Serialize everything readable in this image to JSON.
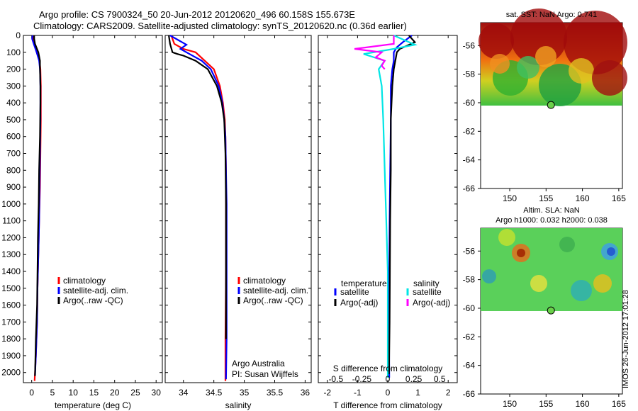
{
  "header": {
    "line1": "Argo profile: CS 7900324_50 20-Jun-2012 20120620_496 60.158S 155.673E",
    "line2": "Climatology: CARS2009. Satellite-adjusted climatology: synTS_20120620.nc (0.36d earlier)"
  },
  "colors": {
    "climatology": "#ff0000",
    "satellite": "#0000ff",
    "argo": "#000000",
    "sat_salinity": "#00e5e5",
    "argo_salinity": "#ff00ff"
  },
  "chart_data": [
    {
      "id": "temperature",
      "type": "line",
      "xlabel": "temperature (deg C)",
      "ylabel": "",
      "xlim": [
        -2,
        31.5
      ],
      "ylim": [
        2060,
        0
      ],
      "xticks": [
        0,
        5,
        10,
        15,
        20,
        25,
        30
      ],
      "yticks": [
        0,
        100,
        200,
        300,
        400,
        500,
        600,
        700,
        800,
        900,
        1000,
        1100,
        1200,
        1300,
        1400,
        1500,
        1600,
        1700,
        1800,
        1900,
        2000
      ],
      "legend": {
        "position": "lower-center",
        "entries": [
          "climatology",
          "satellite-adj. clim.",
          "Argo(..raw -QC)"
        ]
      },
      "series": [
        {
          "name": "climatology",
          "color": "#ff0000",
          "x": [
            0.3,
            0.4,
            0.6,
            1.2,
            1.9,
            2.1,
            2.2,
            2.2,
            2.2,
            2.1,
            2.0,
            1.8,
            1.6,
            1.4,
            1.3,
            1.0,
            0.7
          ],
          "y": [
            0,
            20,
            50,
            100,
            150,
            200,
            300,
            400,
            500,
            700,
            900,
            1100,
            1300,
            1500,
            1700,
            1900,
            2050
          ]
        },
        {
          "name": "satellite-adj. clim.",
          "color": "#0000ff",
          "x": [
            0.2,
            0.1,
            0.5,
            1.2,
            1.8,
            2.0,
            2.1,
            2.1,
            2.1,
            2.0,
            1.9,
            1.8,
            1.6,
            1.4,
            1.3,
            1.0,
            0.8
          ],
          "y": [
            0,
            20,
            50,
            100,
            150,
            200,
            300,
            400,
            500,
            700,
            900,
            1100,
            1300,
            1500,
            1700,
            1900,
            2020
          ]
        },
        {
          "name": "Argo(..raw -QC)",
          "color": "#000000",
          "x": [
            0.6,
            0.6,
            0.8,
            1.6,
            2.0,
            2.0,
            2.1,
            2.1,
            2.0,
            1.8,
            1.7,
            1.5,
            1.4,
            1.3,
            1.0,
            0.8
          ],
          "y": [
            0,
            20,
            50,
            100,
            150,
            200,
            300,
            400,
            600,
            800,
            1000,
            1200,
            1400,
            1600,
            1800,
            2020
          ]
        }
      ]
    },
    {
      "id": "salinity",
      "type": "line",
      "xlabel": "salinity",
      "ylabel": "",
      "xlim": [
        33.7,
        36.1
      ],
      "ylim": [
        2060,
        0
      ],
      "xticks": [
        34,
        34.5,
        35,
        35.5,
        36
      ],
      "xticklabels": [
        "34",
        "34.5",
        "35",
        "35.5",
        "36"
      ],
      "legend": {
        "position": "lower-center",
        "entries": [
          "climatology",
          "satellite-adj. clim.",
          "Argo(..raw -QC)"
        ]
      },
      "annotation": [
        "Argo Australia",
        "PI: Susan Wijffels"
      ],
      "series": [
        {
          "name": "climatology",
          "color": "#ff0000",
          "x": [
            33.8,
            33.85,
            34.0,
            34.2,
            34.35,
            34.5,
            34.6,
            34.65,
            34.68,
            34.69,
            34.7,
            34.7,
            34.7,
            34.69,
            34.69
          ],
          "y": [
            0,
            50,
            80,
            100,
            150,
            200,
            300,
            400,
            500,
            600,
            800,
            1000,
            1400,
            1800,
            2050
          ]
        },
        {
          "name": "satellite-adj. clim.",
          "color": "#0000ff",
          "x": [
            33.78,
            34.05,
            33.95,
            34.1,
            34.3,
            34.45,
            34.58,
            34.64,
            34.67,
            34.69,
            34.7,
            34.71,
            34.71,
            34.71,
            34.7
          ],
          "y": [
            0,
            55,
            80,
            110,
            150,
            200,
            300,
            400,
            500,
            600,
            800,
            1000,
            1400,
            1800,
            2040
          ]
        },
        {
          "name": "Argo(..raw -QC)",
          "color": "#000000",
          "x": [
            33.76,
            33.78,
            33.82,
            33.9,
            34.0,
            34.2,
            34.4,
            34.55,
            34.63,
            34.67,
            34.69,
            34.7,
            34.7,
            34.7
          ],
          "y": [
            0,
            50,
            100,
            110,
            120,
            150,
            200,
            300,
            400,
            500,
            700,
            1000,
            1400,
            1800
          ]
        }
      ]
    },
    {
      "id": "difference",
      "type": "line",
      "xlabel": "T difference from climatology",
      "x2label": "S difference from climatology",
      "ylabel": "",
      "xlim": [
        -2.3,
        2.3
      ],
      "ylim": [
        2060,
        0
      ],
      "xticks": [
        -2,
        -1,
        0,
        1,
        2
      ],
      "x2ticks": [
        -0.5,
        -0.25,
        0,
        0.25,
        0.5
      ],
      "x2ticklabels": [
        "-0.5",
        "-0.25",
        "0",
        "0.25",
        "0.5"
      ],
      "legend": {
        "position": "lower-center",
        "groups": [
          "temperature",
          "salinity"
        ],
        "entries": [
          "satellite",
          "Argo(-adj)",
          "satellite",
          "Argo(-adj)"
        ]
      },
      "series": [
        {
          "name": "satellite",
          "group": "temperature",
          "color": "#0000ff",
          "x": [
            0.8,
            0.5,
            0.3,
            0.2,
            0.2,
            0.15,
            0.1,
            0.1,
            0.08,
            0.06,
            0.05,
            0.04,
            0.05
          ],
          "y": [
            0,
            40,
            70,
            100,
            150,
            200,
            300,
            500,
            800,
            1100,
            1400,
            1700,
            2030
          ]
        },
        {
          "name": "Argo(-adj)",
          "group": "temperature",
          "color": "#000000",
          "x": [
            0.7,
            0.8,
            0.9,
            0.4,
            0.3,
            0.25,
            0.2,
            0.15,
            0.1,
            0.1,
            0.08,
            0.07,
            0.06,
            0.04
          ],
          "y": [
            0,
            20,
            40,
            80,
            100,
            150,
            200,
            300,
            500,
            800,
            1100,
            1400,
            1700,
            2010
          ]
        },
        {
          "name": "satellite",
          "group": "salinity",
          "color": "#00e5e5",
          "x": [
            0.2,
            0.9,
            0.2,
            -0.8,
            -0.1,
            -0.3,
            -0.2,
            -0.15,
            -0.1,
            -0.05,
            0.0,
            0.0,
            0.0
          ],
          "y": [
            0,
            55,
            80,
            110,
            150,
            200,
            300,
            500,
            800,
            1100,
            1400,
            1700,
            2030
          ]
        },
        {
          "name": "Argo(-adj)",
          "group": "salinity",
          "color": "#ff00ff",
          "x": [
            0.2,
            0.2,
            -1.1,
            -0.2,
            -0.4,
            -0.1,
            -0.2,
            -0.1
          ],
          "y": [
            0,
            50,
            80,
            100,
            130,
            150,
            180,
            200
          ]
        }
      ]
    },
    {
      "id": "sst-map",
      "type": "heatmap",
      "title": "sat. SST: NaN Argo: 0.741",
      "xlim": [
        146,
        165.5
      ],
      "ylim": [
        -66,
        -54.4
      ],
      "xticks": [
        150,
        155,
        160,
        165
      ],
      "yticks": [
        -56,
        -58,
        -60,
        -62,
        -64,
        -66
      ],
      "data_extent_lat": [
        -60.2,
        -54.4
      ],
      "marker": {
        "lon": 155.673,
        "lat": -60.158
      }
    },
    {
      "id": "sla-map",
      "type": "heatmap",
      "title": "Altim. SLA: NaN",
      "subtitle": "Argo h1000: 0.032 h2000: 0.038",
      "xlim": [
        146,
        165.5
      ],
      "ylim": [
        -66,
        -54.4
      ],
      "xticks": [
        150,
        155,
        160,
        165
      ],
      "yticks": [
        -56,
        -58,
        -60,
        -62,
        -64,
        -66
      ],
      "data_extent_lat": [
        -60.2,
        -54.4
      ],
      "marker": {
        "lon": 155.673,
        "lat": -60.158
      }
    }
  ],
  "side_label": "IMOS 26-Jun-2012 17:01:28"
}
